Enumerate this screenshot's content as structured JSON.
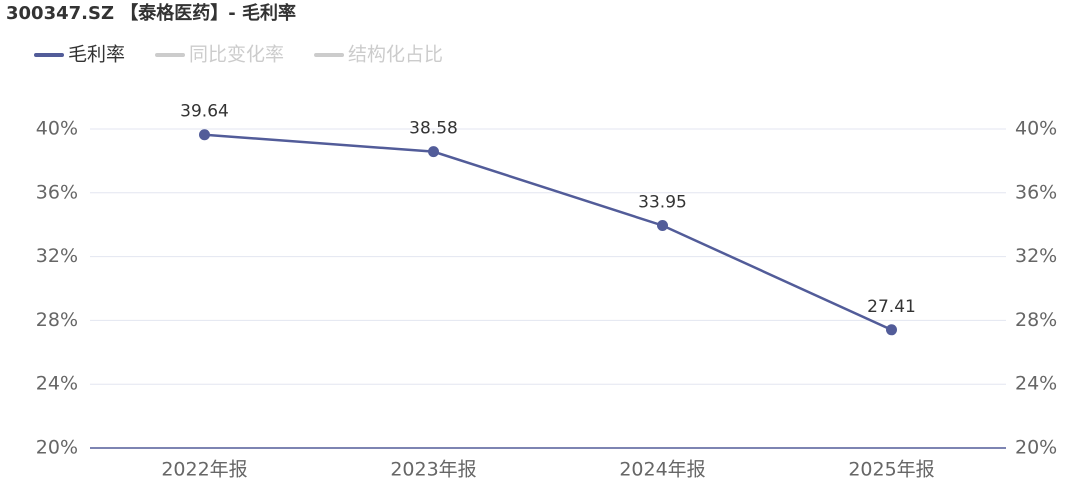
{
  "chart_data": {
    "type": "line",
    "title": "300347.SZ 【泰格医药】- 毛利率",
    "categories": [
      "2022年报",
      "2023年报",
      "2024年报",
      "2025年报"
    ],
    "series": [
      {
        "name": "毛利率",
        "color": "#525c99",
        "values": [
          39.64,
          38.58,
          33.95,
          27.41
        ]
      },
      {
        "name": "同比变化率",
        "color": "#cccccc",
        "values": [
          null,
          null,
          null,
          null
        ],
        "hidden": true
      },
      {
        "name": "结构化占比",
        "color": "#cccccc",
        "values": [
          null,
          null,
          null,
          null
        ],
        "hidden": true
      }
    ],
    "ylim": [
      20,
      40
    ],
    "yticks": [
      {
        "value": 20,
        "label": "20%"
      },
      {
        "value": 24,
        "label": "24%"
      },
      {
        "value": 28,
        "label": "28%"
      },
      {
        "value": 32,
        "label": "32%"
      },
      {
        "value": 36,
        "label": "36%"
      },
      {
        "value": 40,
        "label": "40%"
      }
    ],
    "y2lim": [
      20,
      40
    ],
    "y2ticks": [
      {
        "value": 20,
        "label": "20%"
      },
      {
        "value": 24,
        "label": "24%"
      },
      {
        "value": 28,
        "label": "28%"
      },
      {
        "value": 32,
        "label": "32%"
      },
      {
        "value": 36,
        "label": "36%"
      },
      {
        "value": 40,
        "label": "40%"
      }
    ],
    "grid": true
  }
}
